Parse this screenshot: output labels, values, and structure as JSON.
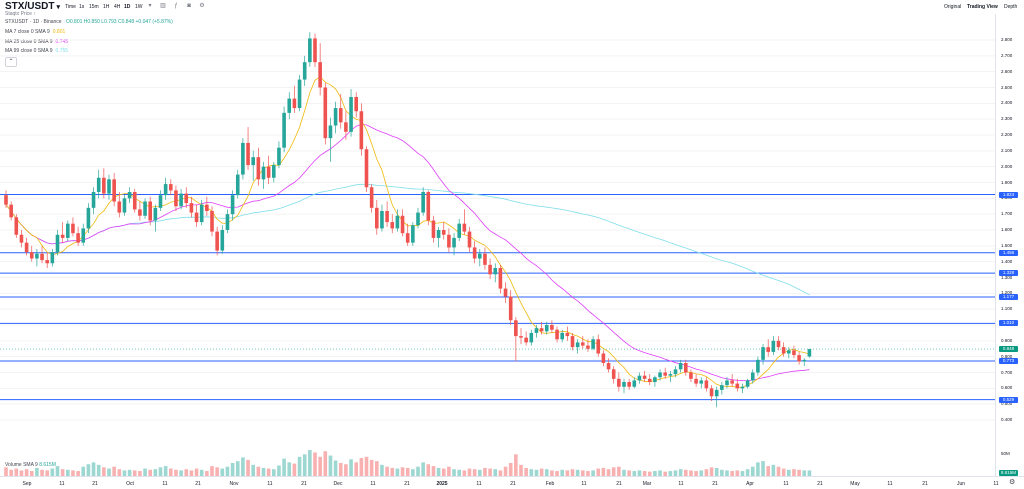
{
  "header": {
    "symbol": "STX/USDT",
    "caret": "▾",
    "subtitle": "Staqtx Price ↑",
    "timeframes": [
      "Time",
      "1s",
      "15m",
      "1H",
      "4H",
      "1D",
      "1W"
    ],
    "active_timeframe": "1D",
    "more_icon": "chevron-down",
    "views": [
      "Original",
      "Trading View",
      "Depth"
    ],
    "active_view": "Trading View"
  },
  "legend": {
    "ohlc": "STXUSDT · 1D · Binance",
    "o": "O0.801",
    "h": "H0.850",
    "l": "L0.793",
    "c": "C0.848",
    "chg": "+0.047 (+5.87%)",
    "ma7_label": "MA 7 close 0 SMA 9",
    "ma7_value": "0.801",
    "ma25_label": "MA 25 close 0 SMA 9",
    "ma25_value": "0.745",
    "ma99_label": "MA 99 close 0 SMA 9",
    "ma99_value": "0.755",
    "volume_label": "Volume SMA 9",
    "volume_value": "8.615M"
  },
  "colors": {
    "up": "#26a69a",
    "down": "#ef5350",
    "hline": "#2962ff",
    "ma7": "#f0b90b",
    "ma25": "#e040fb",
    "ma99": "#80deea"
  },
  "price_axis": [
    "2.800",
    "2.700",
    "2.600",
    "2.500",
    "2.400",
    "2.300",
    "2.200",
    "2.100",
    "2.000",
    "1.900",
    "1.800",
    "1.700",
    "1.600",
    "1.500",
    "1.400",
    "1.300",
    "1.200",
    "1.100",
    "1.000",
    "0.900",
    "0.800",
    "0.700",
    "0.600",
    "0.500",
    "0.400"
  ],
  "horizontal_lines": [
    "1.824",
    "1.456",
    "1.328",
    "1.177",
    "1.010",
    "0.773",
    "0.529"
  ],
  "current_price": "0.848",
  "volume_axis": [
    "50M"
  ],
  "volume_current": "8.615M",
  "time_axis": [
    "Sep",
    "11",
    "21",
    "Oct",
    "11",
    "21",
    "Nov",
    "11",
    "21",
    "Dec",
    "11",
    "21",
    "2025",
    "11",
    "21",
    "Feb",
    "11",
    "21",
    "Mar",
    "11",
    "21",
    "Apr",
    "11",
    "21",
    "May",
    "11",
    "21",
    "Jun",
    "11"
  ],
  "chart_data": {
    "type": "candlestick",
    "ylim": [
      0.4,
      2.85
    ],
    "candles_ohlc": [
      [
        1.82,
        1.85,
        1.74,
        1.76
      ],
      [
        1.76,
        1.78,
        1.66,
        1.68
      ],
      [
        1.68,
        1.7,
        1.55,
        1.57
      ],
      [
        1.57,
        1.6,
        1.49,
        1.52
      ],
      [
        1.52,
        1.55,
        1.44,
        1.46
      ],
      [
        1.46,
        1.5,
        1.4,
        1.42
      ],
      [
        1.42,
        1.48,
        1.37,
        1.45
      ],
      [
        1.45,
        1.5,
        1.39,
        1.41
      ],
      [
        1.41,
        1.46,
        1.36,
        1.39
      ],
      [
        1.39,
        1.48,
        1.37,
        1.46
      ],
      [
        1.46,
        1.6,
        1.44,
        1.57
      ],
      [
        1.57,
        1.65,
        1.52,
        1.55
      ],
      [
        1.55,
        1.66,
        1.53,
        1.64
      ],
      [
        1.64,
        1.68,
        1.56,
        1.58
      ],
      [
        1.58,
        1.62,
        1.5,
        1.52
      ],
      [
        1.52,
        1.64,
        1.5,
        1.61
      ],
      [
        1.61,
        1.77,
        1.58,
        1.74
      ],
      [
        1.74,
        1.87,
        1.7,
        1.84
      ],
      [
        1.84,
        1.98,
        1.8,
        1.93
      ],
      [
        1.93,
        1.99,
        1.8,
        1.83
      ],
      [
        1.83,
        1.95,
        1.79,
        1.92
      ],
      [
        1.92,
        1.96,
        1.75,
        1.78
      ],
      [
        1.78,
        1.84,
        1.68,
        1.71
      ],
      [
        1.71,
        1.82,
        1.69,
        1.8
      ],
      [
        1.8,
        1.87,
        1.77,
        1.84
      ],
      [
        1.84,
        1.86,
        1.71,
        1.73
      ],
      [
        1.73,
        1.78,
        1.66,
        1.69
      ],
      [
        1.69,
        1.8,
        1.67,
        1.78
      ],
      [
        1.78,
        1.81,
        1.63,
        1.66
      ],
      [
        1.66,
        1.76,
        1.59,
        1.74
      ],
      [
        1.74,
        1.85,
        1.72,
        1.82
      ],
      [
        1.82,
        1.93,
        1.79,
        1.89
      ],
      [
        1.89,
        1.92,
        1.82,
        1.85
      ],
      [
        1.85,
        1.88,
        1.72,
        1.75
      ],
      [
        1.75,
        1.86,
        1.73,
        1.83
      ],
      [
        1.83,
        1.87,
        1.74,
        1.77
      ],
      [
        1.77,
        1.81,
        1.68,
        1.71
      ],
      [
        1.71,
        1.76,
        1.62,
        1.65
      ],
      [
        1.65,
        1.79,
        1.63,
        1.76
      ],
      [
        1.76,
        1.81,
        1.69,
        1.72
      ],
      [
        1.72,
        1.75,
        1.56,
        1.59
      ],
      [
        1.59,
        1.62,
        1.44,
        1.47
      ],
      [
        1.47,
        1.63,
        1.45,
        1.6
      ],
      [
        1.6,
        1.73,
        1.58,
        1.7
      ],
      [
        1.7,
        1.85,
        1.66,
        1.82
      ],
      [
        1.82,
        1.98,
        1.8,
        1.95
      ],
      [
        1.95,
        2.18,
        1.92,
        2.15
      ],
      [
        2.15,
        2.25,
        1.98,
        2.01
      ],
      [
        2.01,
        2.1,
        1.91,
        2.06
      ],
      [
        2.06,
        2.12,
        1.88,
        1.92
      ],
      [
        1.92,
        2.03,
        1.86,
        2.0
      ],
      [
        2.0,
        2.07,
        1.89,
        1.93
      ],
      [
        1.93,
        2.03,
        1.9,
        2.01
      ],
      [
        2.01,
        2.16,
        1.99,
        2.12
      ],
      [
        2.12,
        2.38,
        2.09,
        2.34
      ],
      [
        2.34,
        2.47,
        2.3,
        2.43
      ],
      [
        2.43,
        2.51,
        2.34,
        2.37
      ],
      [
        2.37,
        2.58,
        2.35,
        2.55
      ],
      [
        2.55,
        2.7,
        2.51,
        2.66
      ],
      [
        2.66,
        2.85,
        2.63,
        2.81
      ],
      [
        2.81,
        2.84,
        2.63,
        2.66
      ],
      [
        2.66,
        2.78,
        2.45,
        2.5
      ],
      [
        2.5,
        2.53,
        2.14,
        2.18
      ],
      [
        2.18,
        2.31,
        2.03,
        2.26
      ],
      [
        2.26,
        2.41,
        2.21,
        2.37
      ],
      [
        2.37,
        2.46,
        2.24,
        2.28
      ],
      [
        2.28,
        2.35,
        2.17,
        2.22
      ],
      [
        2.22,
        2.49,
        2.19,
        2.44
      ],
      [
        2.44,
        2.47,
        2.31,
        2.35
      ],
      [
        2.35,
        2.4,
        2.07,
        2.11
      ],
      [
        2.11,
        2.13,
        1.84,
        1.87
      ],
      [
        1.87,
        1.89,
        1.71,
        1.74
      ],
      [
        1.74,
        1.79,
        1.57,
        1.61
      ],
      [
        1.61,
        1.76,
        1.59,
        1.72
      ],
      [
        1.72,
        1.78,
        1.62,
        1.65
      ],
      [
        1.65,
        1.7,
        1.58,
        1.61
      ],
      [
        1.61,
        1.73,
        1.59,
        1.69
      ],
      [
        1.69,
        1.73,
        1.56,
        1.58
      ],
      [
        1.58,
        1.64,
        1.5,
        1.52
      ],
      [
        1.52,
        1.65,
        1.5,
        1.63
      ],
      [
        1.63,
        1.74,
        1.61,
        1.71
      ],
      [
        1.71,
        1.87,
        1.69,
        1.84
      ],
      [
        1.84,
        1.85,
        1.63,
        1.66
      ],
      [
        1.66,
        1.69,
        1.52,
        1.55
      ],
      [
        1.55,
        1.62,
        1.49,
        1.6
      ],
      [
        1.6,
        1.65,
        1.54,
        1.57
      ],
      [
        1.57,
        1.61,
        1.46,
        1.49
      ],
      [
        1.49,
        1.58,
        1.44,
        1.55
      ],
      [
        1.55,
        1.67,
        1.53,
        1.64
      ],
      [
        1.64,
        1.73,
        1.57,
        1.59
      ],
      [
        1.59,
        1.62,
        1.46,
        1.49
      ],
      [
        1.49,
        1.53,
        1.39,
        1.42
      ],
      [
        1.42,
        1.48,
        1.37,
        1.45
      ],
      [
        1.45,
        1.49,
        1.35,
        1.38
      ],
      [
        1.38,
        1.42,
        1.29,
        1.32
      ],
      [
        1.32,
        1.39,
        1.27,
        1.36
      ],
      [
        1.36,
        1.38,
        1.2,
        1.23
      ],
      [
        1.23,
        1.27,
        1.14,
        1.18
      ],
      [
        1.18,
        1.22,
        1.0,
        1.03
      ],
      [
        1.03,
        1.05,
        0.77,
        0.93
      ],
      [
        0.93,
        0.98,
        0.88,
        0.92
      ],
      [
        0.92,
        0.96,
        0.87,
        0.89
      ],
      [
        0.89,
        0.97,
        0.87,
        0.95
      ],
      [
        0.95,
        1.0,
        0.92,
        0.98
      ],
      [
        0.98,
        1.02,
        0.94,
        0.96
      ],
      [
        0.96,
        1.02,
        0.94,
        1.0
      ],
      [
        1.0,
        1.03,
        0.95,
        0.97
      ],
      [
        0.97,
        0.99,
        0.89,
        0.91
      ],
      [
        0.91,
        0.97,
        0.89,
        0.95
      ],
      [
        0.95,
        0.99,
        0.9,
        0.93
      ],
      [
        0.93,
        0.95,
        0.84,
        0.86
      ],
      [
        0.86,
        0.91,
        0.82,
        0.89
      ],
      [
        0.89,
        0.93,
        0.85,
        0.87
      ],
      [
        0.87,
        0.91,
        0.83,
        0.85
      ],
      [
        0.85,
        0.93,
        0.84,
        0.91
      ],
      [
        0.91,
        0.94,
        0.8,
        0.82
      ],
      [
        0.82,
        0.84,
        0.74,
        0.76
      ],
      [
        0.76,
        0.79,
        0.7,
        0.72
      ],
      [
        0.72,
        0.74,
        0.63,
        0.66
      ],
      [
        0.66,
        0.7,
        0.58,
        0.61
      ],
      [
        0.61,
        0.66,
        0.57,
        0.64
      ],
      [
        0.64,
        0.66,
        0.59,
        0.61
      ],
      [
        0.61,
        0.67,
        0.6,
        0.65
      ],
      [
        0.65,
        0.7,
        0.63,
        0.68
      ],
      [
        0.68,
        0.71,
        0.64,
        0.66
      ],
      [
        0.66,
        0.69,
        0.62,
        0.64
      ],
      [
        0.64,
        0.68,
        0.61,
        0.67
      ],
      [
        0.67,
        0.72,
        0.65,
        0.7
      ],
      [
        0.7,
        0.73,
        0.66,
        0.68
      ],
      [
        0.68,
        0.71,
        0.64,
        0.69
      ],
      [
        0.69,
        0.74,
        0.67,
        0.72
      ],
      [
        0.72,
        0.78,
        0.7,
        0.76
      ],
      [
        0.76,
        0.78,
        0.68,
        0.7
      ],
      [
        0.7,
        0.72,
        0.64,
        0.66
      ],
      [
        0.66,
        0.69,
        0.61,
        0.63
      ],
      [
        0.63,
        0.67,
        0.6,
        0.65
      ],
      [
        0.65,
        0.67,
        0.58,
        0.6
      ],
      [
        0.6,
        0.62,
        0.52,
        0.55
      ],
      [
        0.55,
        0.61,
        0.48,
        0.59
      ],
      [
        0.59,
        0.64,
        0.56,
        0.62
      ],
      [
        0.62,
        0.67,
        0.6,
        0.65
      ],
      [
        0.65,
        0.69,
        0.61,
        0.63
      ],
      [
        0.63,
        0.66,
        0.58,
        0.6
      ],
      [
        0.6,
        0.63,
        0.57,
        0.61
      ],
      [
        0.61,
        0.66,
        0.6,
        0.65
      ],
      [
        0.65,
        0.72,
        0.63,
        0.7
      ],
      [
        0.7,
        0.8,
        0.68,
        0.78
      ],
      [
        0.78,
        0.88,
        0.75,
        0.86
      ],
      [
        0.86,
        0.91,
        0.8,
        0.83
      ],
      [
        0.83,
        0.93,
        0.81,
        0.9
      ],
      [
        0.9,
        0.93,
        0.84,
        0.86
      ],
      [
        0.86,
        0.89,
        0.8,
        0.82
      ],
      [
        0.82,
        0.86,
        0.79,
        0.84
      ],
      [
        0.84,
        0.87,
        0.79,
        0.81
      ],
      [
        0.81,
        0.83,
        0.75,
        0.77
      ],
      [
        0.77,
        0.79,
        0.74,
        0.78
      ],
      [
        0.801,
        0.85,
        0.793,
        0.848
      ]
    ],
    "volumes_m": [
      14,
      10,
      12,
      9,
      11,
      8,
      13,
      10,
      9,
      12,
      16,
      11,
      10,
      9,
      8,
      15,
      19,
      22,
      18,
      14,
      12,
      15,
      11,
      9,
      10,
      9,
      8,
      12,
      10,
      11,
      14,
      16,
      12,
      10,
      9,
      11,
      9,
      12,
      10,
      8,
      16,
      14,
      12,
      15,
      21,
      24,
      30,
      26,
      18,
      15,
      13,
      12,
      11,
      17,
      28,
      22,
      20,
      31,
      35,
      42,
      38,
      31,
      40,
      33,
      25,
      21,
      19,
      27,
      22,
      29,
      31,
      26,
      24,
      18,
      15,
      13,
      12,
      14,
      13,
      11,
      15,
      22,
      19,
      16,
      13,
      12,
      15,
      11,
      10,
      9,
      12,
      11,
      10,
      13,
      12,
      11,
      9,
      15,
      21,
      35,
      18,
      13,
      11,
      10,
      12,
      11,
      9,
      8,
      10,
      9,
      11,
      10,
      9,
      8,
      9,
      12,
      13,
      11,
      14,
      15,
      10,
      9,
      8,
      9,
      8,
      7,
      8,
      9,
      7,
      8,
      9,
      11,
      10,
      9,
      8,
      9,
      11,
      14,
      13,
      10,
      9,
      8,
      9,
      8,
      11,
      15,
      22,
      24,
      16,
      18,
      15,
      12,
      10,
      11,
      10,
      9,
      9
    ]
  }
}
